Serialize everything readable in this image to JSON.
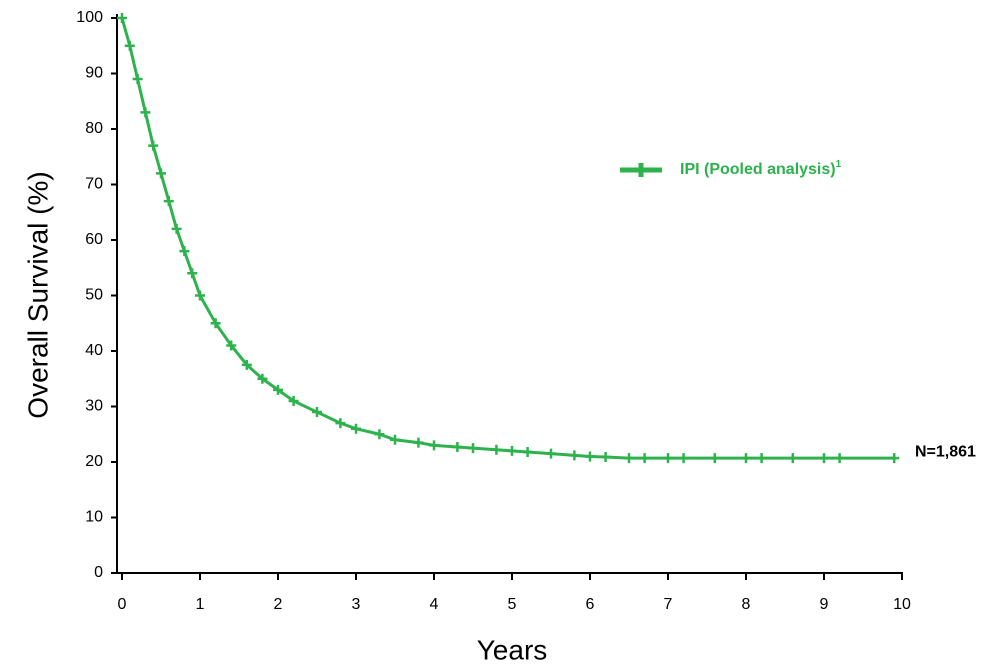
{
  "chart_data": {
    "type": "line",
    "x_label": "Years",
    "y_label": "Overall Survival (%)",
    "x": [
      0,
      0.1,
      0.2,
      0.3,
      0.4,
      0.5,
      0.6,
      0.7,
      0.8,
      0.9,
      1.0,
      1.2,
      1.4,
      1.6,
      1.8,
      2.0,
      2.2,
      2.5,
      2.8,
      3.0,
      3.3,
      3.5,
      3.8,
      4.0,
      4.3,
      4.5,
      4.8,
      5.0,
      5.2,
      5.5,
      5.8,
      6.0,
      6.2,
      6.5,
      6.7,
      7.0,
      7.2,
      7.6,
      8.0,
      8.2,
      8.6,
      9.0,
      9.2,
      9.9
    ],
    "series": [
      {
        "name": "IPI (Pooled analysis)",
        "color": "#2eb24d",
        "values": [
          100,
          95,
          89,
          83,
          77,
          72,
          67,
          62,
          58,
          54,
          50,
          45,
          41,
          37.5,
          35,
          33,
          31,
          29,
          27,
          26,
          25,
          24,
          23.5,
          23,
          22.7,
          22.5,
          22.2,
          22,
          21.8,
          21.5,
          21.2,
          21,
          20.9,
          20.7,
          20.7,
          20.7,
          20.7,
          20.7,
          20.7,
          20.7,
          20.7,
          20.7,
          20.7,
          20.7
        ]
      }
    ],
    "legend_superscript": "1",
    "annotation": "N=1,861",
    "xlim": [
      0,
      10
    ],
    "xticks": [
      0,
      1,
      2,
      3,
      4,
      5,
      6,
      7,
      8,
      9,
      10
    ],
    "ylim": [
      0,
      100
    ],
    "yticks": [
      0,
      10,
      20,
      30,
      40,
      50,
      60,
      70,
      80,
      90,
      100
    ],
    "grid": false
  }
}
